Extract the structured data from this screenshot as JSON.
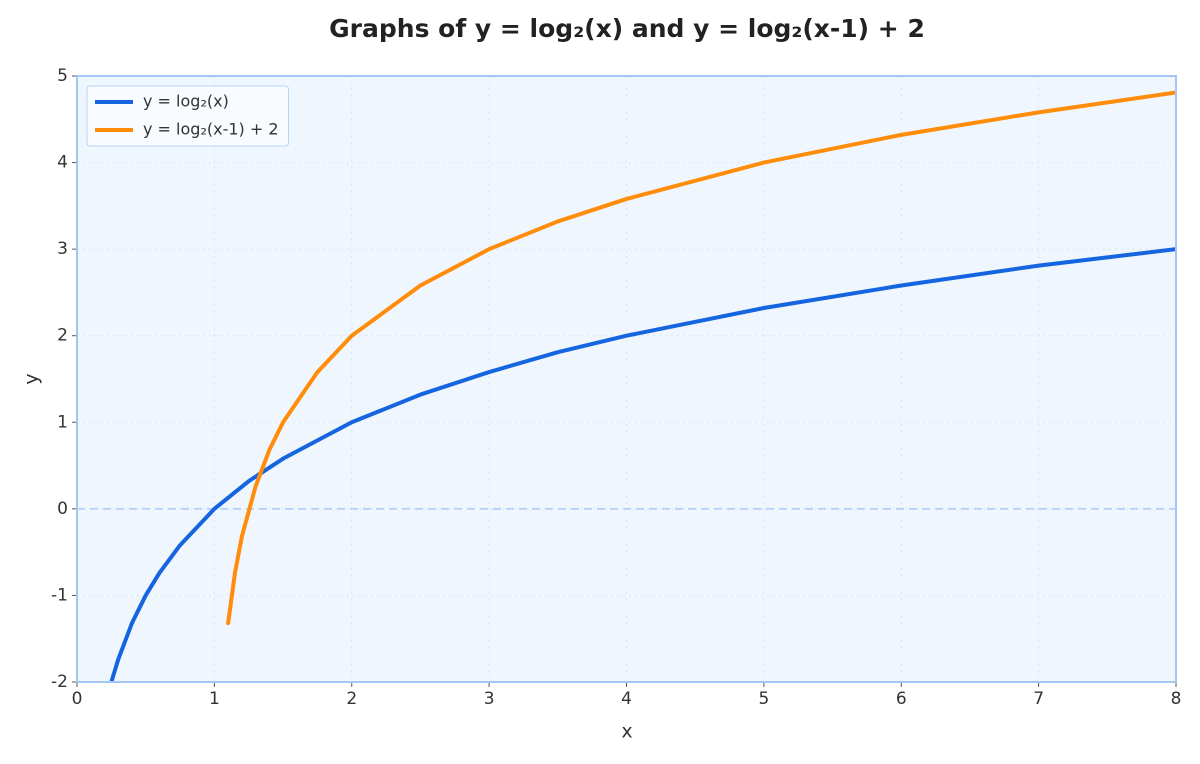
{
  "chart_data": {
    "type": "line",
    "title": "Graphs of y = log₂(x) and y = log₂(x-1) + 2",
    "xlabel": "x",
    "ylabel": "y",
    "xlim": [
      0,
      8
    ],
    "ylim": [
      -2,
      5
    ],
    "xticks": [
      0,
      1,
      2,
      3,
      4,
      5,
      6,
      7,
      8
    ],
    "yticks": [
      -2,
      -1,
      0,
      1,
      2,
      3,
      4,
      5
    ],
    "grid": true,
    "legend": "upper left",
    "hlines": [
      0
    ],
    "series": [
      {
        "name": "y = log₂(x)",
        "color": "#1565e0",
        "x": [
          0.25,
          0.3,
          0.4,
          0.5,
          0.6,
          0.75,
          1,
          1.25,
          1.5,
          2,
          2.5,
          3,
          3.5,
          4,
          5,
          6,
          7,
          8
        ],
        "values": [
          -2,
          -1.74,
          -1.32,
          -1,
          -0.74,
          -0.42,
          0,
          0.32,
          0.58,
          1,
          1.32,
          1.58,
          1.81,
          2,
          2.32,
          2.58,
          2.81,
          3
        ]
      },
      {
        "name": "y = log₂(x-1) + 2",
        "color": "#ff8c0a",
        "x": [
          1.1,
          1.15,
          1.2,
          1.3,
          1.4,
          1.5,
          1.75,
          2,
          2.5,
          3,
          3.5,
          4,
          5,
          6,
          7,
          8
        ],
        "values": [
          -1.32,
          -0.74,
          -0.32,
          0.26,
          0.68,
          1,
          1.58,
          2,
          2.58,
          3,
          3.32,
          3.58,
          4,
          4.32,
          4.58,
          4.81
        ]
      }
    ]
  }
}
